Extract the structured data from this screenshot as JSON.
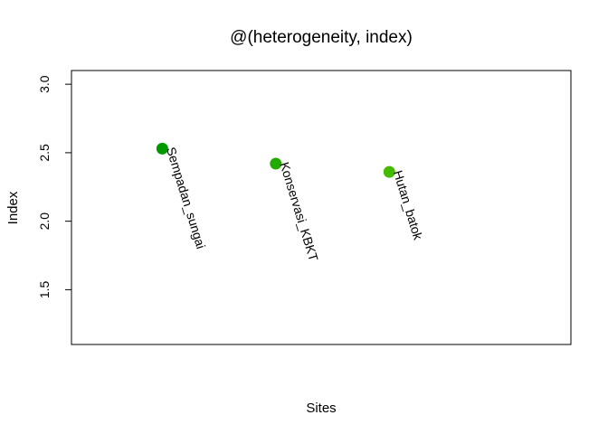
{
  "chart_data": {
    "type": "scatter",
    "title": "@(heterogeneity, index)",
    "xlabel": "Sites",
    "ylabel": "Index",
    "ylim": [
      1.1,
      3.1
    ],
    "yticks": [
      "1.5",
      "2.0",
      "2.5",
      "3.0"
    ],
    "grid": false,
    "points": [
      {
        "label": "Sempadan_sungai",
        "x": 1,
        "y": 2.53,
        "color": "#009900"
      },
      {
        "label": "Konservasi_KBKT",
        "x": 2,
        "y": 2.42,
        "color": "#22aa00"
      },
      {
        "label": "Hutan_batok",
        "x": 3,
        "y": 2.36,
        "color": "#44bb00"
      }
    ],
    "xlim": [
      0.2,
      4.6
    ]
  }
}
